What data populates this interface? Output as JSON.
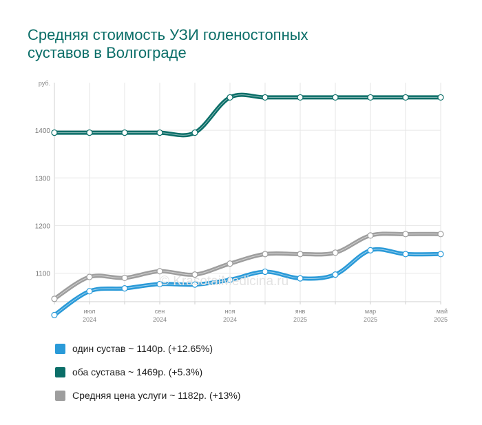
{
  "title_lines": [
    "Средняя стоимость УЗИ голеностопных",
    "суставов в Волгограде"
  ],
  "watermark": "© KrasotaiMedicina.ru",
  "chart_data": {
    "type": "line",
    "title": "Средняя стоимость УЗИ голеностопных суставов в Волгограде",
    "ylabel": "руб.",
    "yticks": [
      1100,
      1200,
      1300,
      1400
    ],
    "ylim": [
      1040,
      1500
    ],
    "grid": true,
    "legend": "bottom",
    "x": [
      "2024-06",
      "2024-07",
      "2024-08",
      "2024-09",
      "2024-10",
      "2024-11",
      "2024-12",
      "2025-01",
      "2025-02",
      "2025-03",
      "2025-04",
      "2025-05"
    ],
    "xtick_labels": [
      {
        "index": 1,
        "month": "июл",
        "year": "2024"
      },
      {
        "index": 3,
        "month": "сен",
        "year": "2024"
      },
      {
        "index": 5,
        "month": "ноя",
        "year": "2024"
      },
      {
        "index": 7,
        "month": "янв",
        "year": "2025"
      },
      {
        "index": 9,
        "month": "мар",
        "year": "2025"
      },
      {
        "index": 11,
        "month": "май",
        "year": "2025"
      }
    ],
    "series": [
      {
        "name": "Средняя цена услуги",
        "color": "#9e9e9e",
        "values": [
          1046,
          1092,
          1090,
          1104,
          1097,
          1120,
          1140,
          1140,
          1143,
          1179,
          1182,
          1182
        ]
      },
      {
        "name": "один сустав",
        "color": "#2a9ad8",
        "values": [
          1012,
          1062,
          1068,
          1077,
          1076,
          1086,
          1103,
          1089,
          1097,
          1148,
          1140,
          1140
        ]
      },
      {
        "name": "оба сустава",
        "color": "#0b6e68",
        "values": [
          1395,
          1395,
          1395,
          1395,
          1395,
          1469,
          1469,
          1469,
          1469,
          1469,
          1469,
          1469
        ]
      }
    ]
  },
  "legend": [
    {
      "label": "один сустав ~ 1140р. (+12.65%)",
      "color": "#2a9ad8"
    },
    {
      "label": "оба сустава ~ 1469р. (+5.3%)",
      "color": "#0b6e68"
    },
    {
      "label": "Средняя цена услуги ~ 1182р. (+13%)",
      "color": "#9e9e9e"
    }
  ]
}
